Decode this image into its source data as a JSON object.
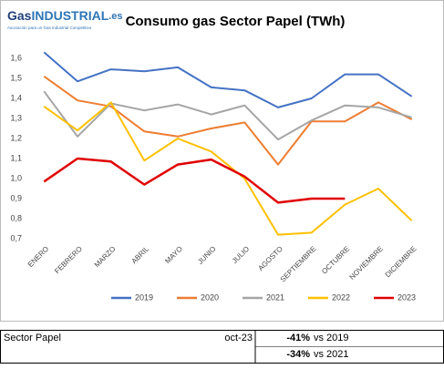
{
  "logo": {
    "parts": [
      "Gas",
      "INDUSTRIAL",
      ".es"
    ],
    "tagline": "Asociación para un Gas Industrial Competitivo"
  },
  "chart_data": {
    "type": "line",
    "title": "Consumo gas Sector Papel (TWh)",
    "categories": [
      "ENERO",
      "FEBRERO",
      "MARZO",
      "ABRIL",
      "MAYO",
      "JUNIO",
      "JULIO",
      "AGOSTO",
      "SEPTIEMBRE",
      "OCTUBRE",
      "NOVIEMBRE",
      "DICIEMBRE"
    ],
    "series": [
      {
        "name": "2019",
        "color": "#4472c4",
        "values": [
          1.63,
          1.485,
          1.545,
          1.535,
          1.555,
          1.455,
          1.44,
          1.355,
          1.4,
          1.52,
          1.52,
          1.41
        ]
      },
      {
        "name": "2020",
        "color": "#ed7d31",
        "values": [
          1.51,
          1.39,
          1.36,
          1.235,
          1.21,
          1.25,
          1.28,
          1.07,
          1.285,
          1.285,
          1.38,
          1.295
        ]
      },
      {
        "name": "2021",
        "color": "#a5a5a5",
        "values": [
          1.435,
          1.21,
          1.375,
          1.34,
          1.37,
          1.32,
          1.365,
          1.195,
          1.29,
          1.365,
          1.355,
          1.305
        ]
      },
      {
        "name": "2022",
        "color": "#ffc000",
        "values": [
          1.36,
          1.24,
          1.38,
          1.09,
          1.2,
          1.135,
          1.0,
          0.72,
          0.73,
          0.87,
          0.95,
          0.79
        ]
      },
      {
        "name": "2023",
        "color": "#e00000",
        "values": [
          0.985,
          1.1,
          1.085,
          0.97,
          1.07,
          1.095,
          1.01,
          0.88,
          0.9,
          0.9,
          null,
          null
        ]
      }
    ],
    "ylim": [
      0.7,
      1.7
    ],
    "yticks": [
      {
        "value": 0.7,
        "label": "0,7"
      },
      {
        "value": 0.8,
        "label": "0,8"
      },
      {
        "value": 0.9,
        "label": "0,9"
      },
      {
        "value": 1.0,
        "label": "1,0"
      },
      {
        "value": 1.1,
        "label": "1,1"
      },
      {
        "value": 1.2,
        "label": "1,2"
      },
      {
        "value": 1.3,
        "label": "1,3"
      },
      {
        "value": 1.4,
        "label": "1,4"
      },
      {
        "value": 1.5,
        "label": "1,5"
      },
      {
        "value": 1.6,
        "label": "1,6"
      }
    ],
    "grid": false,
    "legend": "bottom"
  },
  "summary": {
    "sector": "Sector Papel",
    "period": "oct-23",
    "comparisons": [
      {
        "change": "-41%",
        "label": "vs 2019"
      },
      {
        "change": "-34%",
        "label": "vs 2021"
      }
    ]
  }
}
